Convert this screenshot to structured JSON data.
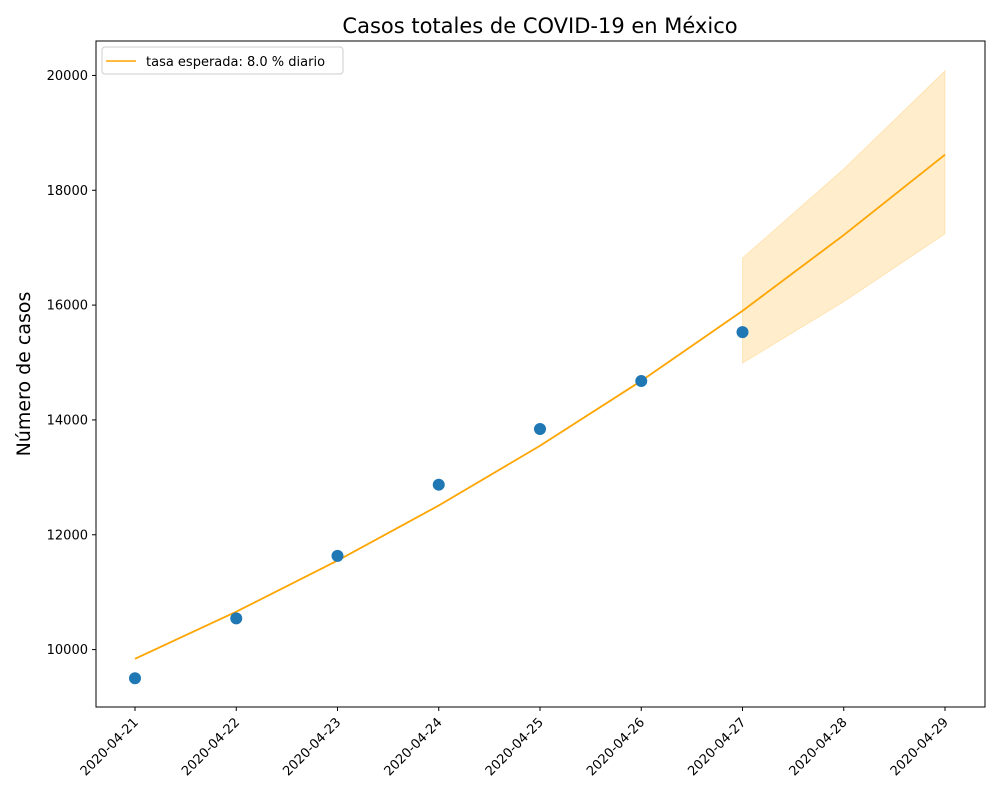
{
  "chart_data": {
    "type": "line",
    "title": "Casos totales de COVID-19 en México",
    "xlabel": "",
    "ylabel": "Número de casos",
    "x": [
      "2020-04-21",
      "2020-04-22",
      "2020-04-23",
      "2020-04-24",
      "2020-04-25",
      "2020-04-26",
      "2020-04-27",
      "2020-04-28",
      "2020-04-29"
    ],
    "xtick_labels": [
      "2020-04-21",
      "2020-04-22",
      "2020-04-23",
      "2020-04-24",
      "2020-04-25",
      "2020-04-26",
      "2020-04-27",
      "2020-04-28",
      "2020-04-29"
    ],
    "ylim": [
      9000,
      20600
    ],
    "yticks": [
      10000,
      12000,
      14000,
      16000,
      18000,
      20000
    ],
    "ytick_labels": [
      "10000",
      "12000",
      "14000",
      "16000",
      "18000",
      "20000"
    ],
    "grid": false,
    "legend_position": "top-left",
    "series": [
      {
        "name": "tasa esperada: 8.0 % diario",
        "kind": "line",
        "color": "#FFA500",
        "x": [
          "2020-04-21",
          "2020-04-22",
          "2020-04-23",
          "2020-04-24",
          "2020-04-25",
          "2020-04-26",
          "2020-04-27",
          "2020-04-28",
          "2020-04-29"
        ],
        "values": [
          9840,
          10660,
          11550,
          12510,
          13550,
          14680,
          15900,
          17220,
          18620
        ]
      },
      {
        "kind": "scatter",
        "color": "#1f77b4",
        "x": [
          "2020-04-21",
          "2020-04-22",
          "2020-04-23",
          "2020-04-24",
          "2020-04-25",
          "2020-04-26",
          "2020-04-27"
        ],
        "values": [
          9501,
          10544,
          11633,
          12872,
          13842,
          14677,
          15529
        ]
      }
    ],
    "band": {
      "color": "#FFA500",
      "opacity": 0.2,
      "x": [
        "2020-04-27",
        "2020-04-28",
        "2020-04-29"
      ],
      "lower": [
        14990,
        16060,
        17240
      ],
      "upper": [
        16820,
        18370,
        20080
      ]
    }
  }
}
